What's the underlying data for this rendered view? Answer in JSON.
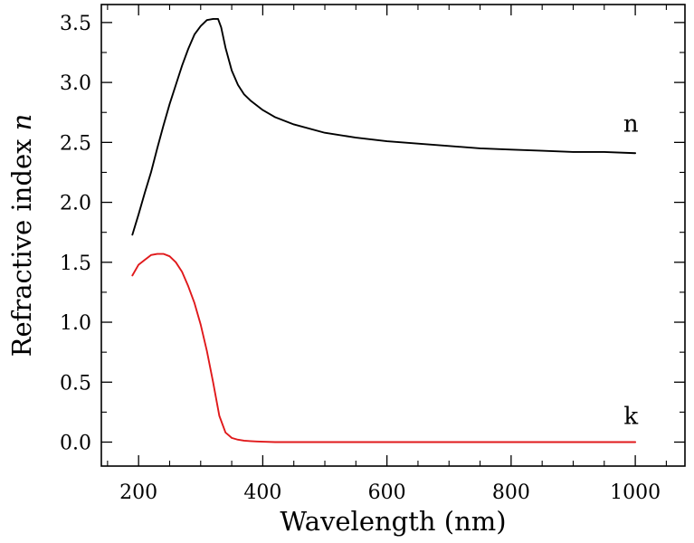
{
  "chart_data": {
    "type": "line",
    "xlabel": "Wavelength (nm)",
    "ylabel_prefix": "Refractive index ",
    "ylabel_var": "n",
    "xlim": [
      140,
      1080
    ],
    "ylim": [
      -0.2,
      3.65
    ],
    "x_ticks_major": [
      200,
      400,
      600,
      800,
      1000
    ],
    "x_ticks_minor": [
      150,
      250,
      300,
      350,
      450,
      500,
      550,
      650,
      700,
      750,
      850,
      900,
      950,
      1050
    ],
    "y_ticks_major": [
      0.0,
      0.5,
      1.0,
      1.5,
      2.0,
      2.5,
      3.0,
      3.5
    ],
    "x_tick_labels": [
      "200",
      "400",
      "600",
      "800",
      "1000"
    ],
    "y_tick_labels": [
      "0.0",
      "0.5",
      "1.0",
      "1.5",
      "2.0",
      "2.5",
      "3.0",
      "3.5"
    ],
    "series": [
      {
        "name": "n",
        "color": "#000000",
        "x": [
          190,
          200,
          210,
          220,
          230,
          240,
          250,
          260,
          270,
          280,
          290,
          300,
          310,
          320,
          328,
          333,
          340,
          350,
          360,
          370,
          380,
          400,
          420,
          450,
          500,
          550,
          600,
          650,
          700,
          750,
          800,
          850,
          900,
          950,
          1000
        ],
        "y": [
          1.73,
          1.9,
          2.08,
          2.25,
          2.45,
          2.64,
          2.82,
          2.98,
          3.14,
          3.28,
          3.4,
          3.47,
          3.52,
          3.53,
          3.53,
          3.46,
          3.29,
          3.1,
          2.98,
          2.9,
          2.85,
          2.77,
          2.71,
          2.65,
          2.58,
          2.54,
          2.51,
          2.49,
          2.47,
          2.45,
          2.44,
          2.43,
          2.42,
          2.42,
          2.41
        ]
      },
      {
        "name": "k",
        "color": "#e0191b",
        "x": [
          190,
          200,
          210,
          220,
          230,
          240,
          250,
          260,
          270,
          280,
          290,
          300,
          310,
          320,
          330,
          340,
          350,
          360,
          370,
          380,
          390,
          400,
          420,
          450,
          500,
          600,
          700,
          800,
          900,
          1000
        ],
        "y": [
          1.39,
          1.48,
          1.52,
          1.56,
          1.57,
          1.57,
          1.55,
          1.5,
          1.42,
          1.3,
          1.16,
          0.98,
          0.76,
          0.5,
          0.22,
          0.08,
          0.035,
          0.02,
          0.012,
          0.008,
          0.005,
          0.003,
          0.0,
          0.0,
          0.0,
          0.0,
          0.0,
          0.0,
          0.0,
          0.0
        ]
      }
    ],
    "annotations": [
      {
        "text": "n",
        "x": 993,
        "y": 2.59
      },
      {
        "text": "k",
        "x": 993,
        "y": 0.15
      }
    ]
  }
}
